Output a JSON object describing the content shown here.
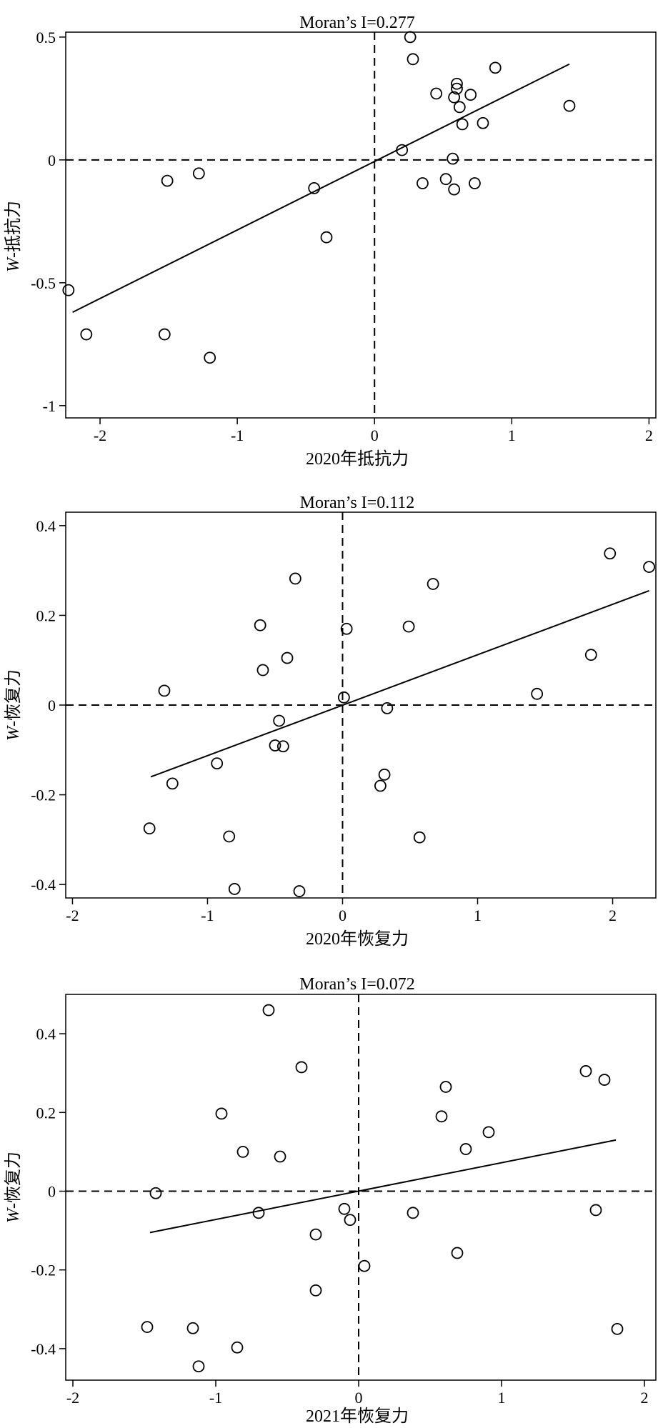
{
  "chart_data": [
    {
      "type": "scatter",
      "title": "Moran’s I=0.277",
      "xlabel": "2020年抵抗力",
      "ylabel_prefix": "W",
      "ylabel": "-抵抗力",
      "xlim": [
        -2.25,
        2.05
      ],
      "ylim": [
        -1.05,
        0.52
      ],
      "xticks": [
        -2,
        -1,
        0,
        1,
        2
      ],
      "yticks": [
        -1,
        -0.5,
        0,
        0.5
      ],
      "reference_lines": {
        "x": 0,
        "y": 0
      },
      "fit_line": [
        [
          -2.2,
          -0.62
        ],
        [
          1.42,
          0.39
        ]
      ],
      "points": [
        [
          -2.23,
          -0.53
        ],
        [
          -2.1,
          -0.71
        ],
        [
          -1.53,
          -0.71
        ],
        [
          -1.51,
          -0.085
        ],
        [
          -1.28,
          -0.055
        ],
        [
          -1.2,
          -0.805
        ],
        [
          -0.44,
          -0.115
        ],
        [
          -0.35,
          -0.315
        ],
        [
          0.2,
          0.04
        ],
        [
          0.26,
          0.5
        ],
        [
          0.28,
          0.41
        ],
        [
          0.35,
          -0.095
        ],
        [
          0.45,
          0.27
        ],
        [
          0.52,
          -0.078
        ],
        [
          0.57,
          0.005
        ],
        [
          0.58,
          0.255
        ],
        [
          0.58,
          -0.12
        ],
        [
          0.6,
          0.31
        ],
        [
          0.6,
          0.29
        ],
        [
          0.62,
          0.215
        ],
        [
          0.64,
          0.145
        ],
        [
          0.7,
          0.265
        ],
        [
          0.73,
          -0.095
        ],
        [
          0.79,
          0.15
        ],
        [
          0.88,
          0.375
        ],
        [
          1.42,
          0.22
        ]
      ]
    },
    {
      "type": "scatter",
      "title": "Moran’s I=0.112",
      "xlabel": "2020年恢复力",
      "ylabel_prefix": "W",
      "ylabel": "-恢复力",
      "xlim": [
        -2.05,
        2.32
      ],
      "ylim": [
        -0.43,
        0.43
      ],
      "xticks": [
        -2,
        -1,
        0,
        1,
        2
      ],
      "yticks": [
        -0.4,
        -0.2,
        0,
        0.2,
        0.4
      ],
      "reference_lines": {
        "x": 0,
        "y": 0
      },
      "fit_line": [
        [
          -1.42,
          -0.16
        ],
        [
          2.27,
          0.255
        ]
      ],
      "points": [
        [
          -1.43,
          -0.275
        ],
        [
          -1.32,
          0.032
        ],
        [
          -1.26,
          -0.175
        ],
        [
          -0.93,
          -0.13
        ],
        [
          -0.84,
          -0.293
        ],
        [
          -0.8,
          -0.41
        ],
        [
          -0.61,
          0.178
        ],
        [
          -0.59,
          0.078
        ],
        [
          -0.5,
          -0.09
        ],
        [
          -0.47,
          -0.035
        ],
        [
          -0.44,
          -0.092
        ],
        [
          -0.41,
          0.105
        ],
        [
          -0.35,
          0.282
        ],
        [
          -0.32,
          -0.415
        ],
        [
          0.01,
          0.017
        ],
        [
          0.03,
          0.17
        ],
        [
          0.28,
          -0.18
        ],
        [
          0.31,
          -0.155
        ],
        [
          0.33,
          -0.007
        ],
        [
          0.49,
          0.175
        ],
        [
          0.57,
          -0.295
        ],
        [
          0.67,
          0.27
        ],
        [
          1.44,
          0.025
        ],
        [
          1.84,
          0.112
        ],
        [
          1.98,
          0.338
        ],
        [
          2.27,
          0.308
        ]
      ]
    },
    {
      "type": "scatter",
      "title": "Moran’s I=0.072",
      "xlabel": "2021年恢复力",
      "ylabel_prefix": "W",
      "ylabel": "-恢复力",
      "xlim": [
        -2.05,
        2.08
      ],
      "ylim": [
        -0.48,
        0.5
      ],
      "xticks": [
        -2,
        -1,
        0,
        1,
        2
      ],
      "yticks": [
        -0.4,
        -0.2,
        0,
        0.2,
        0.4
      ],
      "reference_lines": {
        "x": 0,
        "y": 0
      },
      "fit_line": [
        [
          -1.46,
          -0.105
        ],
        [
          1.8,
          0.13
        ]
      ],
      "points": [
        [
          -1.48,
          -0.345
        ],
        [
          -1.42,
          -0.005
        ],
        [
          -1.16,
          -0.348
        ],
        [
          -1.12,
          -0.445
        ],
        [
          -0.96,
          0.197
        ],
        [
          -0.85,
          -0.397
        ],
        [
          -0.81,
          0.1
        ],
        [
          -0.7,
          -0.055
        ],
        [
          -0.63,
          0.46
        ],
        [
          -0.55,
          0.088
        ],
        [
          -0.4,
          0.315
        ],
        [
          -0.3,
          -0.11
        ],
        [
          -0.3,
          -0.252
        ],
        [
          -0.1,
          -0.045
        ],
        [
          -0.06,
          -0.073
        ],
        [
          0.04,
          -0.19
        ],
        [
          0.38,
          -0.055
        ],
        [
          0.58,
          0.19
        ],
        [
          0.61,
          0.265
        ],
        [
          0.69,
          -0.157
        ],
        [
          0.75,
          0.107
        ],
        [
          0.91,
          0.15
        ],
        [
          1.59,
          0.305
        ],
        [
          1.66,
          -0.048
        ],
        [
          1.72,
          0.283
        ],
        [
          1.81,
          -0.35
        ]
      ]
    }
  ]
}
